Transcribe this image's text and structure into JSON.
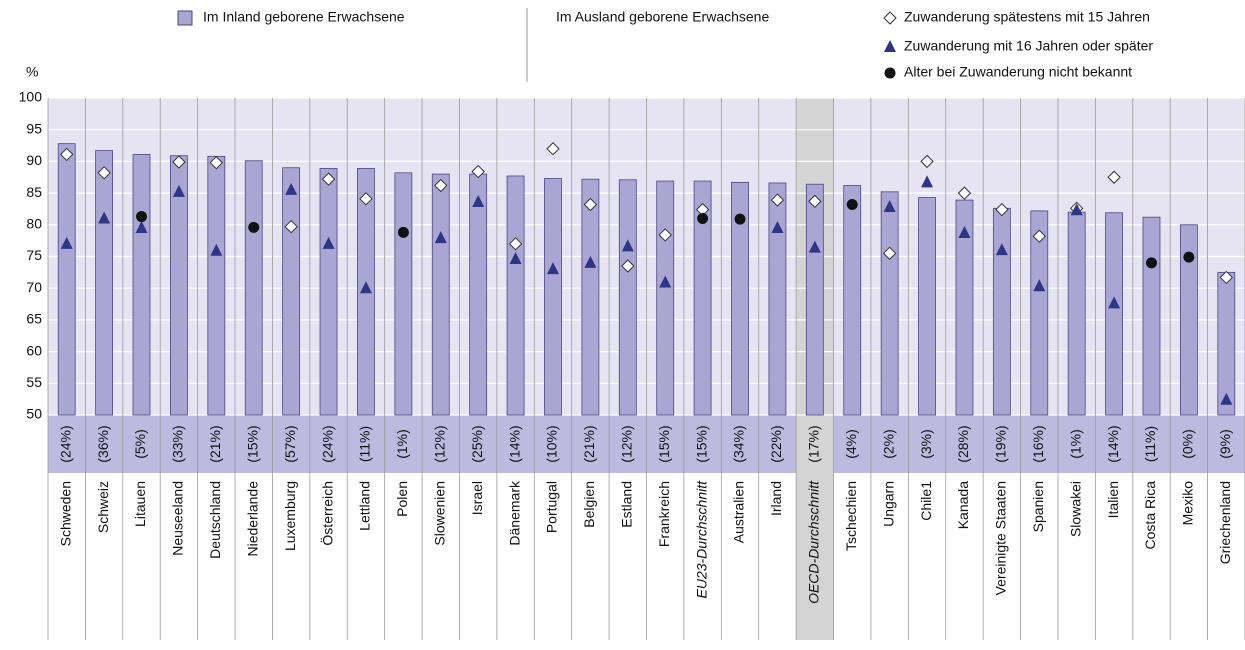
{
  "chart_data": {
    "type": "bar",
    "y_label": "%",
    "legend_header": "Im Ausland geborene Erwachsene",
    "categories": [
      "Schweden",
      "Schweiz",
      "Litauen",
      "Neuseeland",
      "Deutschland",
      "Niederlande",
      "Luxemburg",
      "Österreich",
      "Lettland",
      "Polen",
      "Slowenien",
      "Israel",
      "Dänemark",
      "Portugal",
      "Belgien",
      "Estland",
      "Frankreich",
      "EU23-Durchschnitt",
      "Australien",
      "Irland",
      "OECD-Durchschnitt",
      "Tschechien",
      "Ungarn",
      "Chile1",
      "Kanada",
      "Vereinigte Staaten",
      "Spanien",
      "Slowakei",
      "Italien",
      "Costa Rica",
      "Mexiko",
      "Griechenland"
    ],
    "series": [
      {
        "name": "Im Inland geborene Erwachsene",
        "marker": "bar",
        "color": "#a9a6d4",
        "values": [
          92.8,
          91.7,
          91.1,
          90.9,
          90.8,
          90.1,
          89,
          88.9,
          88.9,
          88.2,
          88,
          88,
          87.7,
          87.3,
          87.2,
          87.1,
          86.9,
          86.9,
          86.7,
          86.6,
          86.4,
          86.2,
          85.2,
          84.3,
          83.9,
          82.6,
          82.2,
          82,
          81.9,
          81.2,
          80,
          72.5
        ]
      },
      {
        "name": "Zuwanderung spätestens mit 15 Jahren",
        "marker": "diamond",
        "color": "#ffffff",
        "values": [
          91.1,
          88.2,
          null,
          89.9,
          89.8,
          null,
          79.7,
          87.2,
          84.1,
          null,
          86.2,
          88.4,
          77,
          92,
          83.2,
          73.5,
          78.4,
          82.4,
          null,
          83.9,
          83.7,
          null,
          75.5,
          90,
          85,
          82.4,
          78.2,
          82.6,
          87.5,
          null,
          null,
          71.7
        ]
      },
      {
        "name": "Zuwanderung mit 16 Jahren oder später",
        "marker": "triangle",
        "color": "#2e3585",
        "values": [
          77,
          81,
          79.5,
          85.2,
          75.9,
          null,
          85.5,
          77,
          70,
          null,
          77.9,
          83.6,
          74.6,
          73,
          74,
          76.6,
          70.9,
          null,
          null,
          79.5,
          76.4,
          null,
          82.8,
          86.7,
          78.7,
          76,
          70.3,
          82.3,
          67.6,
          null,
          null,
          52.4
        ]
      },
      {
        "name": "Alter bei Zuwanderung nicht bekannt",
        "marker": "circle",
        "color": "#111111",
        "values": [
          null,
          null,
          81.3,
          null,
          null,
          79.6,
          null,
          null,
          null,
          78.8,
          null,
          null,
          null,
          null,
          null,
          null,
          null,
          81,
          80.9,
          null,
          null,
          83.2,
          null,
          null,
          null,
          null,
          null,
          null,
          null,
          74,
          74.9,
          null
        ]
      }
    ],
    "shares": {
      "values": [
        24,
        36,
        5,
        33,
        21,
        15,
        57,
        24,
        11,
        1,
        12,
        25,
        14,
        10,
        21,
        12,
        15,
        15,
        34,
        22,
        17,
        4,
        2,
        3,
        28,
        19,
        16,
        1,
        14,
        11,
        0,
        9
      ],
      "value_labels": [
        "(24%)",
        "(36%)",
        "(5%)",
        "(33%)",
        "(21%)",
        "(15%)",
        "(57%)",
        "(24%)",
        "(11%)",
        "(1%)",
        "(12%)",
        "(25%)",
        "(14%)",
        "(10%)",
        "(21%)",
        "(12%)",
        "(15%)",
        "(15%)",
        "(34%)",
        "(22%)",
        "(17%)",
        "(4%)",
        "(2%)",
        "(3%)",
        "(28%)",
        "(19%)",
        "(16%)",
        "(1%)",
        "(14%)",
        "(11%)",
        "(0%)",
        "(9%)"
      ]
    },
    "highlight": [
      20
    ],
    "italic": [
      17,
      20
    ],
    "ylim": [
      50,
      100
    ],
    "yticks": [
      50,
      55,
      60,
      65,
      70,
      75,
      80,
      85,
      90,
      95,
      100
    ],
    "grid": true
  }
}
